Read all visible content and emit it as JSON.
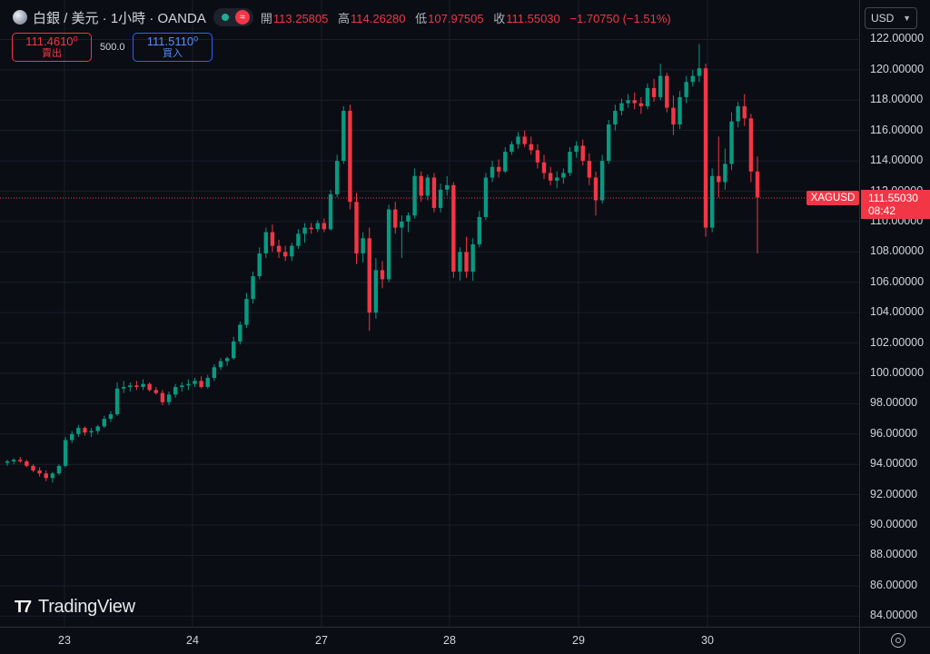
{
  "header": {
    "symbol_name": "白銀 / 美元 · 1小時 · OANDA",
    "ohlc": [
      {
        "key": "開",
        "value": "113.25805"
      },
      {
        "key": "高",
        "value": "114.26280"
      },
      {
        "key": "低",
        "value": "107.97505"
      },
      {
        "key": "收",
        "value": "111.55030"
      }
    ],
    "change": "−1.70750 (−1.51%)",
    "icons": {
      "logo": "silver-coin-icon",
      "market": "market-open-dot-icon",
      "wave": "wave-icon",
      "settings": "gear-icon"
    }
  },
  "trade": {
    "sell_price": "111.4610⁰",
    "sell_label": "賣出",
    "spread": "500.0",
    "buy_price": "111.5110⁰",
    "buy_label": "買入"
  },
  "currency": {
    "label": "USD"
  },
  "last_price": {
    "symbol": "XAGUSD",
    "price": "111.55030",
    "countdown": "08:42"
  },
  "branding": {
    "text": "TradingView"
  },
  "colors": {
    "up": "#089981",
    "down": "#f23645",
    "background": "#0b0d14",
    "grid": "#1a1e29"
  },
  "chart_data": {
    "type": "candlestick",
    "interval": "1h",
    "x_ticks": [
      "23",
      "24",
      "27",
      "28",
      "29",
      "30"
    ],
    "y_ticks": [
      "84.00000",
      "86.00000",
      "88.00000",
      "90.00000",
      "92.00000",
      "94.00000",
      "96.00000",
      "98.00000",
      "100.00000",
      "102.00000",
      "104.00000",
      "106.00000",
      "108.00000",
      "110.00000",
      "112.00000",
      "114.00000",
      "116.00000",
      "118.00000",
      "120.00000",
      "122.00000"
    ],
    "ylim": [
      83.3,
      124.6
    ],
    "last_price": 111.5503,
    "grid": true,
    "candles": [
      [
        94.1,
        94.3,
        93.9,
        94.2
      ],
      [
        94.2,
        94.4,
        94.0,
        94.3
      ],
      [
        94.3,
        94.5,
        94.1,
        94.2
      ],
      [
        94.2,
        94.3,
        93.8,
        93.9
      ],
      [
        93.9,
        94.0,
        93.5,
        93.6
      ],
      [
        93.6,
        93.8,
        93.2,
        93.4
      ],
      [
        93.4,
        93.6,
        92.9,
        93.1
      ],
      [
        93.1,
        93.5,
        92.8,
        93.4
      ],
      [
        93.4,
        94.0,
        93.3,
        93.9
      ],
      [
        93.9,
        95.8,
        93.8,
        95.6
      ],
      [
        95.6,
        96.2,
        95.4,
        96.0
      ],
      [
        96.0,
        96.6,
        95.8,
        96.4
      ],
      [
        96.4,
        96.5,
        95.9,
        96.1
      ],
      [
        96.1,
        96.4,
        95.8,
        96.2
      ],
      [
        96.2,
        96.6,
        96.0,
        96.5
      ],
      [
        96.5,
        97.2,
        96.4,
        97.0
      ],
      [
        97.0,
        97.5,
        96.8,
        97.3
      ],
      [
        97.3,
        99.4,
        97.2,
        99.0
      ],
      [
        99.0,
        99.5,
        98.7,
        99.1
      ],
      [
        99.1,
        99.4,
        98.8,
        99.2
      ],
      [
        99.2,
        99.5,
        98.9,
        99.1
      ],
      [
        99.1,
        99.6,
        98.9,
        99.3
      ],
      [
        99.3,
        99.4,
        98.8,
        98.9
      ],
      [
        98.9,
        99.1,
        98.6,
        98.7
      ],
      [
        98.7,
        98.9,
        97.9,
        98.1
      ],
      [
        98.1,
        98.8,
        97.9,
        98.6
      ],
      [
        98.6,
        99.3,
        98.4,
        99.1
      ],
      [
        99.1,
        99.4,
        98.8,
        99.2
      ],
      [
        99.2,
        99.6,
        98.9,
        99.3
      ],
      [
        99.3,
        99.7,
        99.1,
        99.5
      ],
      [
        99.5,
        99.8,
        99.0,
        99.1
      ],
      [
        99.1,
        99.9,
        99.0,
        99.7
      ],
      [
        99.7,
        100.6,
        99.5,
        100.4
      ],
      [
        100.4,
        101.0,
        100.2,
        100.8
      ],
      [
        100.8,
        101.1,
        100.5,
        101.0
      ],
      [
        101.0,
        102.4,
        100.9,
        102.1
      ],
      [
        102.1,
        103.4,
        101.9,
        103.2
      ],
      [
        103.2,
        105.3,
        103.0,
        104.9
      ],
      [
        104.9,
        106.7,
        104.6,
        106.4
      ],
      [
        106.4,
        108.3,
        106.2,
        107.9
      ],
      [
        107.9,
        109.6,
        107.6,
        109.3
      ],
      [
        109.3,
        109.8,
        108.0,
        108.4
      ],
      [
        108.4,
        108.8,
        107.6,
        108.0
      ],
      [
        108.0,
        108.4,
        107.4,
        107.7
      ],
      [
        107.7,
        108.6,
        107.4,
        108.4
      ],
      [
        108.4,
        109.5,
        108.2,
        109.2
      ],
      [
        109.2,
        109.9,
        108.6,
        109.6
      ],
      [
        109.6,
        109.9,
        109.2,
        109.5
      ],
      [
        109.5,
        110.1,
        109.3,
        109.9
      ],
      [
        109.9,
        110.2,
        109.3,
        109.5
      ],
      [
        109.5,
        112.1,
        109.4,
        111.8
      ],
      [
        111.8,
        114.4,
        111.6,
        114.0
      ],
      [
        114.0,
        117.6,
        113.8,
        117.3
      ],
      [
        117.3,
        117.7,
        110.8,
        111.3
      ],
      [
        111.3,
        111.9,
        107.2,
        107.9
      ],
      [
        107.9,
        109.3,
        107.3,
        108.9
      ],
      [
        108.9,
        109.6,
        102.8,
        104.0
      ],
      [
        104.0,
        107.6,
        103.6,
        106.8
      ],
      [
        106.8,
        107.4,
        105.6,
        106.2
      ],
      [
        106.2,
        111.1,
        106.0,
        110.8
      ],
      [
        110.8,
        111.3,
        109.2,
        109.6
      ],
      [
        109.6,
        110.4,
        107.6,
        110.0
      ],
      [
        110.0,
        110.6,
        109.3,
        110.4
      ],
      [
        110.4,
        113.5,
        110.2,
        113.0
      ],
      [
        113.0,
        113.3,
        111.3,
        111.7
      ],
      [
        111.7,
        113.1,
        111.4,
        112.9
      ],
      [
        112.9,
        113.2,
        110.6,
        110.9
      ],
      [
        110.9,
        112.5,
        110.6,
        112.1
      ],
      [
        112.1,
        113.0,
        111.7,
        112.4
      ],
      [
        112.4,
        112.6,
        106.3,
        106.7
      ],
      [
        106.7,
        108.3,
        106.1,
        108.0
      ],
      [
        108.0,
        109.0,
        106.3,
        106.7
      ],
      [
        106.7,
        108.9,
        106.1,
        108.5
      ],
      [
        108.5,
        110.7,
        108.3,
        110.3
      ],
      [
        110.3,
        113.2,
        110.1,
        112.9
      ],
      [
        112.9,
        114.0,
        112.6,
        113.6
      ],
      [
        113.6,
        114.1,
        112.9,
        113.3
      ],
      [
        113.3,
        114.9,
        113.2,
        114.6
      ],
      [
        114.6,
        115.3,
        114.4,
        115.1
      ],
      [
        115.1,
        115.9,
        114.8,
        115.6
      ],
      [
        115.6,
        116.0,
        114.9,
        115.1
      ],
      [
        115.1,
        115.6,
        114.4,
        114.7
      ],
      [
        114.7,
        115.1,
        113.5,
        113.9
      ],
      [
        113.9,
        114.4,
        112.8,
        113.2
      ],
      [
        113.2,
        113.6,
        112.4,
        112.7
      ],
      [
        112.7,
        113.3,
        112.2,
        112.9
      ],
      [
        112.9,
        113.5,
        112.5,
        113.2
      ],
      [
        113.2,
        114.9,
        113.0,
        114.6
      ],
      [
        114.6,
        115.3,
        114.2,
        115.0
      ],
      [
        115.0,
        115.4,
        113.7,
        114.0
      ],
      [
        114.0,
        114.5,
        112.4,
        112.9
      ],
      [
        112.9,
        113.3,
        110.4,
        111.4
      ],
      [
        111.4,
        114.4,
        111.2,
        114.0
      ],
      [
        114.0,
        116.7,
        113.8,
        116.4
      ],
      [
        116.4,
        117.7,
        116.0,
        117.3
      ],
      [
        117.3,
        118.1,
        117.0,
        117.8
      ],
      [
        117.8,
        118.4,
        117.5,
        118.0
      ],
      [
        118.0,
        118.5,
        117.4,
        117.8
      ],
      [
        117.8,
        118.2,
        117.1,
        117.6
      ],
      [
        117.6,
        119.1,
        117.4,
        118.8
      ],
      [
        118.8,
        119.4,
        117.9,
        118.2
      ],
      [
        118.2,
        120.4,
        118.0,
        119.6
      ],
      [
        119.6,
        119.8,
        117.2,
        117.5
      ],
      [
        117.5,
        118.3,
        115.7,
        116.4
      ],
      [
        116.4,
        118.6,
        116.1,
        118.2
      ],
      [
        118.2,
        119.6,
        117.8,
        119.2
      ],
      [
        119.2,
        120.0,
        118.9,
        119.6
      ],
      [
        119.6,
        121.7,
        119.2,
        120.1
      ],
      [
        120.1,
        120.4,
        109.0,
        109.6
      ],
      [
        109.6,
        113.5,
        109.3,
        113.0
      ],
      [
        113.0,
        115.6,
        111.6,
        112.6
      ],
      [
        112.6,
        114.8,
        112.1,
        113.8
      ],
      [
        113.8,
        117.2,
        113.4,
        116.6
      ],
      [
        116.6,
        117.9,
        116.2,
        117.6
      ],
      [
        117.6,
        118.4,
        116.3,
        116.8
      ],
      [
        116.8,
        117.1,
        112.6,
        113.3
      ],
      [
        113.3,
        114.3,
        107.9,
        111.6
      ]
    ]
  }
}
